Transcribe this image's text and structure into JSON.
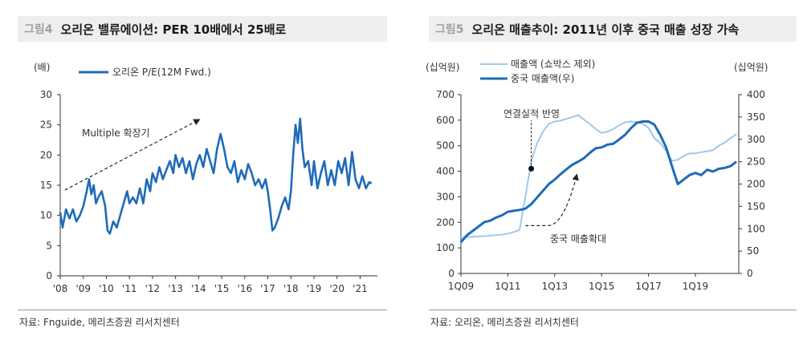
{
  "figures": [
    {
      "number": "그림4",
      "title": "오리온 밸류에이션: PER 10배에서 25배로",
      "source": "자료: Fnguide, 메리츠증권 리서치센터"
    },
    {
      "number": "그림5",
      "title": "오리온 매출추이: 2011년 이후 중국 매출 성장 가속",
      "source": "자료: 오리온, 메리츠증권 리서치센터"
    }
  ],
  "colors": {
    "dark_blue": "#1f6bb8",
    "light_blue": "#9ec8ec",
    "axis": "#333333"
  },
  "chart_data": [
    {
      "type": "line",
      "unit_label": "(배)",
      "legend_position": "top-left",
      "x_tick_labels": [
        "'08",
        "'09",
        "'10",
        "'11",
        "'12",
        "'13",
        "'14",
        "'15",
        "'16",
        "'17",
        "'18",
        "'19",
        "'20",
        "'21"
      ],
      "y_ticks": [
        0,
        5,
        10,
        15,
        20,
        25,
        30
      ],
      "ylim": [
        0,
        30
      ],
      "xlim": [
        2008.0,
        2021.75
      ],
      "series": [
        {
          "name": "오리온 P/E(12M Fwd.)",
          "color": "#1f6bb8",
          "x": [
            2008.0,
            2008.1,
            2008.25,
            2008.4,
            2008.55,
            2008.7,
            2008.85,
            2009.0,
            2009.15,
            2009.25,
            2009.35,
            2009.45,
            2009.55,
            2009.65,
            2009.8,
            2009.95,
            2010.05,
            2010.15,
            2010.3,
            2010.45,
            2010.6,
            2010.75,
            2010.9,
            2011.0,
            2011.15,
            2011.3,
            2011.45,
            2011.6,
            2011.75,
            2011.9,
            2012.0,
            2012.15,
            2012.3,
            2012.45,
            2012.6,
            2012.75,
            2012.9,
            2013.0,
            2013.15,
            2013.3,
            2013.45,
            2013.6,
            2013.75,
            2013.9,
            2014.05,
            2014.2,
            2014.35,
            2014.5,
            2014.65,
            2014.8,
            2014.95,
            2015.1,
            2015.25,
            2015.4,
            2015.55,
            2015.7,
            2015.85,
            2016.0,
            2016.15,
            2016.3,
            2016.45,
            2016.6,
            2016.75,
            2016.9,
            2017.0,
            2017.1,
            2017.2,
            2017.3,
            2017.45,
            2017.6,
            2017.75,
            2017.9,
            2018.0,
            2018.1,
            2018.2,
            2018.3,
            2018.4,
            2018.5,
            2018.6,
            2018.75,
            2018.9,
            2019.0,
            2019.15,
            2019.3,
            2019.45,
            2019.6,
            2019.75,
            2019.9,
            2020.05,
            2020.2,
            2020.35,
            2020.5,
            2020.65,
            2020.8,
            2020.95,
            2021.1,
            2021.25,
            2021.4,
            2021.5
          ],
          "values": [
            10.5,
            8.0,
            11.0,
            9.5,
            11.0,
            9.0,
            10.0,
            11.5,
            14.0,
            16.0,
            13.5,
            15.0,
            12.0,
            13.0,
            14.0,
            11.5,
            7.5,
            7.0,
            9.0,
            8.0,
            10.0,
            12.0,
            14.0,
            12.0,
            13.0,
            12.0,
            14.5,
            12.0,
            16.0,
            14.0,
            17.0,
            15.5,
            18.0,
            16.0,
            17.5,
            19.0,
            17.0,
            20.0,
            18.0,
            19.5,
            17.0,
            19.0,
            16.0,
            18.5,
            20.0,
            18.0,
            21.0,
            19.0,
            17.0,
            21.0,
            23.5,
            21.0,
            18.0,
            17.0,
            19.0,
            15.5,
            17.5,
            16.0,
            18.5,
            17.0,
            15.0,
            16.0,
            14.5,
            16.0,
            14.0,
            11.0,
            7.5,
            8.0,
            9.5,
            11.5,
            13.0,
            11.0,
            14.0,
            20.0,
            25.0,
            22.0,
            26.0,
            21.0,
            18.0,
            19.0,
            15.0,
            19.0,
            14.5,
            17.0,
            19.0,
            15.0,
            17.5,
            15.0,
            19.0,
            17.0,
            19.5,
            15.0,
            20.5,
            16.0,
            14.5,
            16.5,
            14.5,
            15.5,
            15.3
          ]
        }
      ],
      "annotation": {
        "text": "Multiple 확장기",
        "arrow_from": [
          2008.2,
          14.2
        ],
        "arrow_to": [
          2014.05,
          25.9
        ]
      }
    },
    {
      "type": "line",
      "left_unit_label": "(십억원)",
      "right_unit_label": "(십억원)",
      "legend_position": "top-center",
      "x_tick_labels": [
        "1Q09",
        "1Q11",
        "1Q13",
        "1Q15",
        "1Q17",
        "1Q19"
      ],
      "xlim": [
        2009.0,
        2020.85
      ],
      "y_left_ticks": [
        0,
        100,
        200,
        300,
        400,
        500,
        600,
        700
      ],
      "ylim_left": [
        0,
        700
      ],
      "y_right_ticks": [
        0,
        50,
        100,
        150,
        200,
        250,
        300,
        350,
        400
      ],
      "ylim_right": [
        0,
        400
      ],
      "series": [
        {
          "name": "매출액 (쇼박스 제외)",
          "axis": "left",
          "color": "#9ec8ec",
          "x": [
            2009.0,
            2009.25,
            2009.5,
            2009.75,
            2010.0,
            2010.25,
            2010.5,
            2010.75,
            2011.0,
            2011.25,
            2011.5,
            2011.75,
            2012.0,
            2012.25,
            2012.5,
            2012.75,
            2013.0,
            2013.25,
            2013.5,
            2013.75,
            2014.0,
            2014.25,
            2014.5,
            2014.75,
            2015.0,
            2015.25,
            2015.5,
            2015.75,
            2016.0,
            2016.25,
            2016.5,
            2016.75,
            2017.0,
            2017.25,
            2017.5,
            2017.75,
            2018.0,
            2018.25,
            2018.5,
            2018.75,
            2019.0,
            2019.25,
            2019.5,
            2019.75,
            2020.0,
            2020.25,
            2020.5,
            2020.75
          ],
          "values": [
            140,
            142,
            143,
            145,
            146,
            148,
            150,
            152,
            156,
            162,
            170,
            300,
            440,
            510,
            555,
            585,
            595,
            598,
            605,
            612,
            620,
            602,
            585,
            565,
            550,
            555,
            565,
            580,
            592,
            595,
            592,
            586,
            570,
            530,
            510,
            480,
            440,
            445,
            460,
            470,
            470,
            475,
            478,
            482,
            500,
            512,
            530,
            545
          ]
        },
        {
          "name": "중국 매출액(우)",
          "axis": "right",
          "color": "#1f6bb8",
          "x": [
            2009.0,
            2009.25,
            2009.5,
            2009.75,
            2010.0,
            2010.25,
            2010.5,
            2010.75,
            2011.0,
            2011.25,
            2011.5,
            2011.75,
            2012.0,
            2012.25,
            2012.5,
            2012.75,
            2013.0,
            2013.25,
            2013.5,
            2013.75,
            2014.0,
            2014.25,
            2014.5,
            2014.75,
            2015.0,
            2015.25,
            2015.5,
            2015.75,
            2016.0,
            2016.25,
            2016.5,
            2016.75,
            2017.0,
            2017.25,
            2017.5,
            2017.75,
            2018.0,
            2018.25,
            2018.5,
            2018.75,
            2019.0,
            2019.25,
            2019.5,
            2019.75,
            2020.0,
            2020.25,
            2020.5,
            2020.75
          ],
          "values": [
            70,
            85,
            95,
            105,
            115,
            118,
            125,
            130,
            138,
            140,
            142,
            145,
            155,
            170,
            185,
            200,
            210,
            222,
            233,
            243,
            250,
            258,
            270,
            280,
            282,
            288,
            290,
            300,
            310,
            325,
            337,
            340,
            340,
            333,
            310,
            282,
            240,
            200,
            210,
            220,
            225,
            220,
            232,
            228,
            234,
            236,
            240,
            250
          ]
        }
      ],
      "annotations": [
        {
          "text": "연결실적 반영",
          "point": [
            2012.0,
            410
          ]
        },
        {
          "text": "중국 매출확대",
          "arrow_from": [
            2011.75,
            107
          ],
          "arrow_to": [
            2013.95,
            222
          ]
        }
      ]
    }
  ]
}
